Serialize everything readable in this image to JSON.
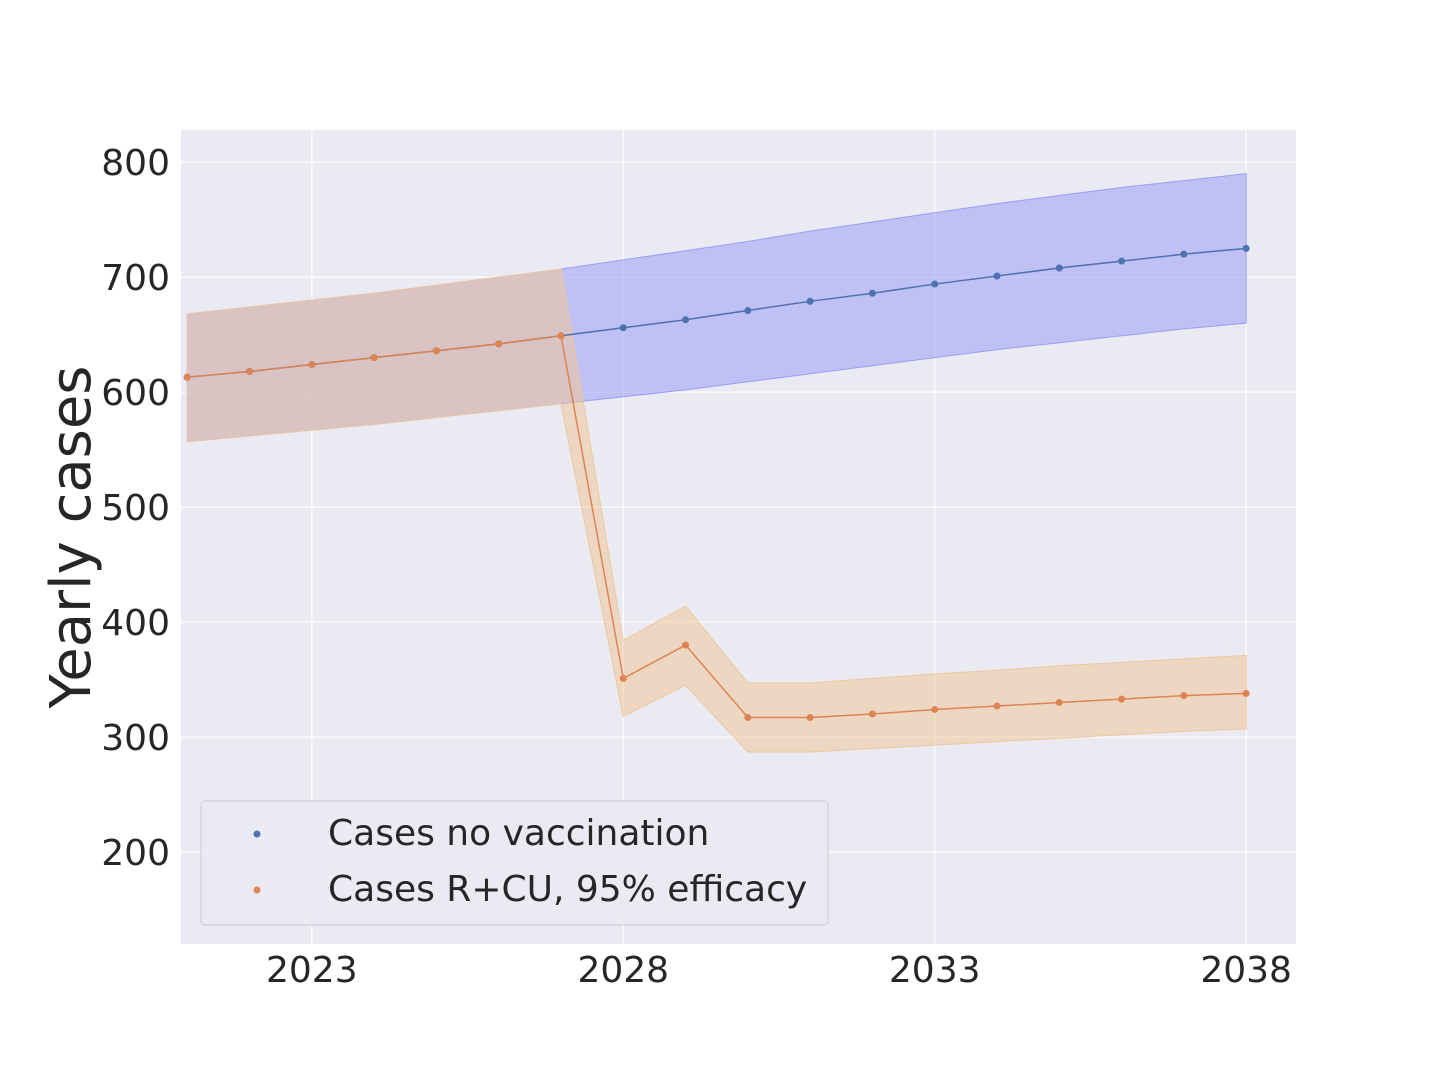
{
  "chart_data": {
    "type": "line",
    "title": "",
    "xlabel": "",
    "ylabel": "Yearly cases",
    "xlim": [
      2020.9,
      2038.8
    ],
    "ylim": [
      120,
      828
    ],
    "x_ticks": [
      2023,
      2028,
      2033,
      2038
    ],
    "y_ticks": [
      200,
      300,
      400,
      500,
      600,
      700,
      800
    ],
    "grid": true,
    "legend_position": "lower-left",
    "x": [
      2021,
      2022,
      2023,
      2024,
      2025,
      2026,
      2027,
      2028,
      2029,
      2030,
      2031,
      2032,
      2033,
      2034,
      2035,
      2036,
      2037,
      2038
    ],
    "series": [
      {
        "name": "Cases no vaccination",
        "color": "#4c72b0",
        "band_color": "#9a9cf5",
        "values": [
          613,
          618,
          624,
          630,
          636,
          642,
          649,
          656,
          663,
          671,
          679,
          686,
          694,
          701,
          708,
          714,
          720,
          725
        ],
        "lower": [
          557,
          562,
          567,
          572,
          578,
          584,
          590,
          596,
          602,
          609,
          616,
          623,
          630,
          637,
          643,
          649,
          655,
          660
        ],
        "upper": [
          668,
          674,
          680,
          686,
          693,
          700,
          707,
          715,
          723,
          731,
          740,
          748,
          756,
          764,
          771,
          778,
          784,
          790
        ]
      },
      {
        "name": "Cases R+CU, 95% efficacy",
        "color": "#dd8452",
        "band_color": "#eec79b",
        "values": [
          613,
          618,
          624,
          630,
          636,
          642,
          649,
          351,
          380,
          317,
          317,
          320,
          324,
          327,
          330,
          333,
          336,
          338
        ],
        "lower": [
          557,
          562,
          567,
          572,
          578,
          584,
          590,
          318,
          345,
          287,
          287,
          290,
          293,
          296,
          299,
          302,
          305,
          307
        ],
        "upper": [
          668,
          674,
          680,
          686,
          693,
          700,
          707,
          384,
          414,
          347,
          347,
          351,
          355,
          358,
          362,
          365,
          368,
          371
        ]
      }
    ]
  }
}
